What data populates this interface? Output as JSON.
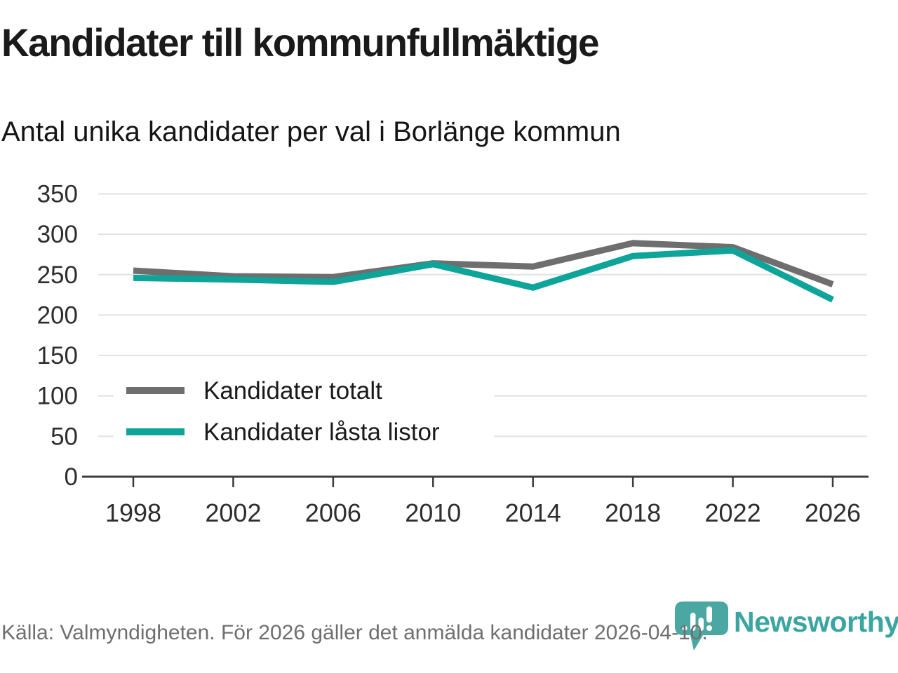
{
  "title": "Kandidater till kommunfullmäktige",
  "subtitle": "Antal unika kandidater per val i Borlänge kommun",
  "chart_data": {
    "type": "line",
    "categories": [
      "1998",
      "2002",
      "2006",
      "2010",
      "2014",
      "2018",
      "2022",
      "2026"
    ],
    "series": [
      {
        "name": "Kandidater totalt",
        "color": "#6e6e6e",
        "values": [
          255,
          248,
          247,
          264,
          260,
          289,
          284,
          238
        ]
      },
      {
        "name": "Kandidater låsta listor",
        "color": "#0ea49a",
        "values": [
          246,
          244,
          241,
          263,
          234,
          273,
          280,
          219
        ]
      }
    ],
    "title": "Kandidater till kommunfullmäktige",
    "subtitle": "Antal unika kandidater per val i Borlänge kommun",
    "xlabel": "",
    "ylabel": "",
    "ylim": [
      0,
      350
    ],
    "yticks": [
      0,
      50,
      100,
      150,
      200,
      250,
      300,
      350
    ],
    "grid": true,
    "legend_position": "inside-left"
  },
  "colors": {
    "grid": "#e2e2e2",
    "axis": "#3c3c3c",
    "tick_label": "#2e2e2e",
    "legend_text": "#1a1a1a",
    "brand_teal": "#3ba6a1"
  },
  "footer": {
    "source_text": "Källa: Valmyndigheten. För 2026 gäller det anmälda kandidater 2026-04-10.",
    "brand": "Newsworthy"
  },
  "icons": {
    "logo": "newsworthy-speech-bubble-barchart-icon"
  }
}
